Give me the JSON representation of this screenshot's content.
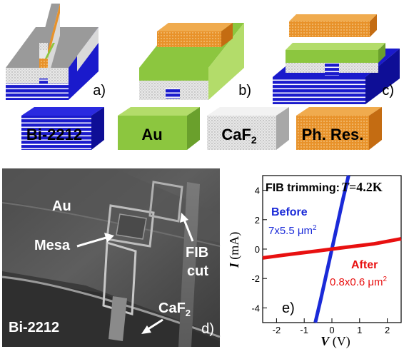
{
  "panels": {
    "a": "a)",
    "b": "b)",
    "c": "c)",
    "d": "d)",
    "e": "e)"
  },
  "legend": [
    {
      "text": "Bi-2212",
      "color": "#1a1acc"
    },
    {
      "text": "Au",
      "color": "#8cc63f"
    },
    {
      "text": "CaF",
      "sub": "2",
      "color": "#d9d9d9"
    },
    {
      "text": "Ph. Res.",
      "color": "#e8922a"
    }
  ],
  "sem": {
    "au": "Au",
    "mesa": "Mesa",
    "fib": "FIB",
    "cut": "cut",
    "caf": "CaF",
    "caf_sub": "2",
    "bi": "Bi-2212"
  },
  "iv": {
    "header": "FIB trimming:",
    "t_italic": "T",
    "t_value": "=4.2K",
    "before": "Before",
    "before_area": "7x5.5 μm",
    "before_sup": "2",
    "after": "After",
    "after_area": "0.8x0.6 μm",
    "after_sup": "2",
    "ylabel_var": "I",
    "ylabel_unit": " (mA)",
    "xlabel_var": "V",
    "xlabel_unit": " (V)",
    "colors": {
      "before": "#1a2ad8",
      "after": "#e81010"
    }
  },
  "chart_data": {
    "type": "line",
    "xlim": [
      -2.5,
      2.5
    ],
    "ylim": [
      -5,
      5
    ],
    "xticks": [
      -2,
      -1,
      0,
      1,
      2
    ],
    "yticks": [
      -4,
      -2,
      0,
      2,
      4
    ],
    "grid": false,
    "series": [
      {
        "name": "Before",
        "x": [
          -0.6,
          -0.4,
          -0.2,
          0,
          0.2,
          0.4,
          0.6
        ],
        "y": [
          -5,
          -3.4,
          -1.7,
          0,
          1.7,
          3.4,
          5
        ]
      },
      {
        "name": "After",
        "x": [
          -2.5,
          -1.5,
          -0.5,
          0,
          0.5,
          1.5,
          2.5
        ],
        "y": [
          -0.6,
          -0.35,
          -0.12,
          0,
          0.12,
          0.35,
          0.7
        ]
      }
    ]
  }
}
